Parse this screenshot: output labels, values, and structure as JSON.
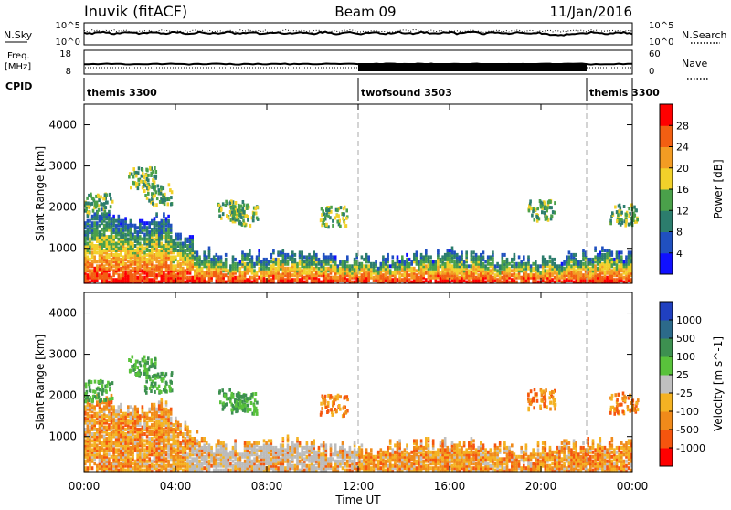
{
  "header": {
    "station": "Inuvik (fitACF)",
    "beam": "Beam 09",
    "date": "11/Jan/2016"
  },
  "noise_panel": {
    "left_label": "N.Sky",
    "left_ticks": [
      "10^5",
      "10^0"
    ],
    "right_ticks": [
      "10^5",
      "10^0"
    ],
    "right_label": "N.Search"
  },
  "freq_panel": {
    "left_label_top": "Freq.",
    "left_label_unit": "[MHz]",
    "left_ticks": [
      "18",
      "8"
    ],
    "right_ticks": [
      "60",
      "0"
    ],
    "right_label": "Nave"
  },
  "cpid_panel": {
    "label": "CPID",
    "modes": [
      {
        "name": "themis 3300",
        "start_hour": 0,
        "end_hour": 12
      },
      {
        "name": "twofsound 3503",
        "start_hour": 12,
        "end_hour": 22
      },
      {
        "name": "themis 3300",
        "start_hour": 22,
        "end_hour": 24
      }
    ]
  },
  "time_axis": {
    "label": "Time UT",
    "ticks": [
      "00:00",
      "04:00",
      "08:00",
      "12:00",
      "16:00",
      "20:00",
      "00:00"
    ]
  },
  "colors": {
    "ground_scatter": "#bbbbbb",
    "mode_change_line": "#aaaaaa"
  },
  "chart_data": [
    {
      "type": "heatmap",
      "parameter": "power",
      "ylabel": "Slant Range [km]",
      "ylim": [
        150,
        4500
      ],
      "yticks": [
        1000,
        2000,
        3000,
        4000
      ],
      "xlim": [
        0,
        24
      ],
      "colorbar": {
        "label": "Power [dB]",
        "ticks": [
          "4",
          "8",
          "12",
          "16",
          "20",
          "24",
          "28"
        ],
        "colors": [
          "#1010ff",
          "#2050c0",
          "#2c7d6d",
          "#4aa04a",
          "#f2d12a",
          "#f39c23",
          "#f25f12",
          "#ff0000"
        ]
      }
    },
    {
      "type": "heatmap",
      "parameter": "velocity",
      "ylabel": "Slant Range [km]",
      "ylim": [
        150,
        4500
      ],
      "yticks": [
        1000,
        2000,
        3000,
        4000
      ],
      "xlim": [
        0,
        24
      ],
      "colorbar": {
        "label": "Velocity [m s^-1]",
        "ticks": [
          "1000",
          "500",
          "100",
          "25",
          "-25",
          "-100",
          "-500",
          "-1000"
        ],
        "colors": [
          "#2040c0",
          "#2c6a8a",
          "#3d9050",
          "#59c23b",
          "#c0c0c0",
          "#f4b223",
          "#f08a1a",
          "#f5550e",
          "#ff0000"
        ]
      }
    }
  ]
}
